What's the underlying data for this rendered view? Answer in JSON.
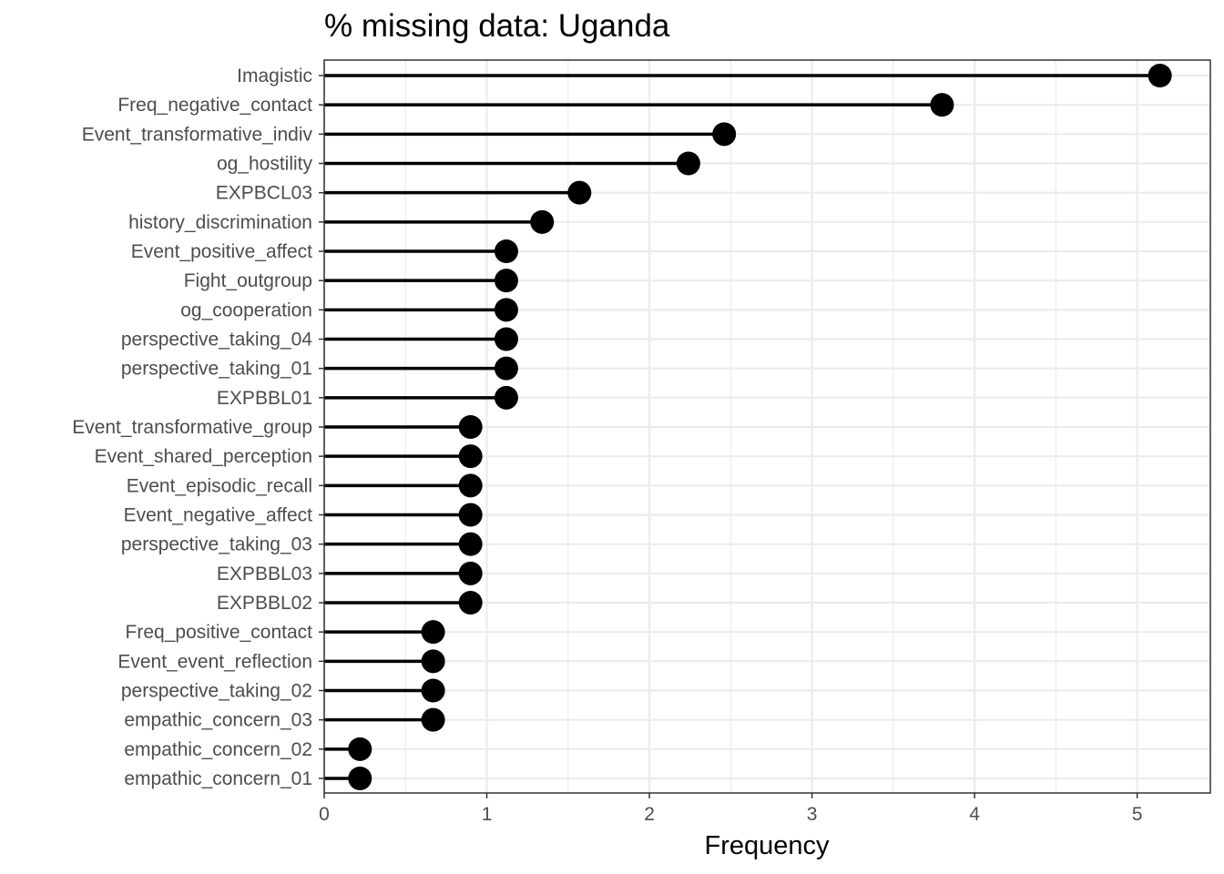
{
  "chart_data": {
    "type": "lollipop",
    "title": "% missing data: Uganda",
    "xlabel": "Frequency",
    "ylabel": "",
    "xlim": [
      0,
      5.45
    ],
    "x_ticks": [
      0,
      1,
      2,
      3,
      4,
      5
    ],
    "grid": true,
    "theme": "bw",
    "categories": [
      "Imagistic",
      "Freq_negative_contact",
      "Event_transformative_indiv",
      "og_hostility",
      "EXPBCL03",
      "history_discrimination",
      "Event_positive_affect",
      "Fight_outgroup",
      "og_cooperation",
      "perspective_taking_04",
      "perspective_taking_01",
      "EXPBBL01",
      "Event_transformative_group",
      "Event_shared_perception",
      "Event_episodic_recall",
      "Event_negative_affect",
      "perspective_taking_03",
      "EXPBBL03",
      "EXPBBL02",
      "Freq_positive_contact",
      "Event_event_reflection",
      "perspective_taking_02",
      "empathic_concern_03",
      "empathic_concern_02",
      "empathic_concern_01"
    ],
    "values": [
      5.14,
      3.8,
      2.46,
      2.24,
      1.57,
      1.34,
      1.12,
      1.12,
      1.12,
      1.12,
      1.12,
      1.12,
      0.9,
      0.9,
      0.9,
      0.9,
      0.9,
      0.9,
      0.9,
      0.67,
      0.67,
      0.67,
      0.67,
      0.22,
      0.22
    ]
  }
}
